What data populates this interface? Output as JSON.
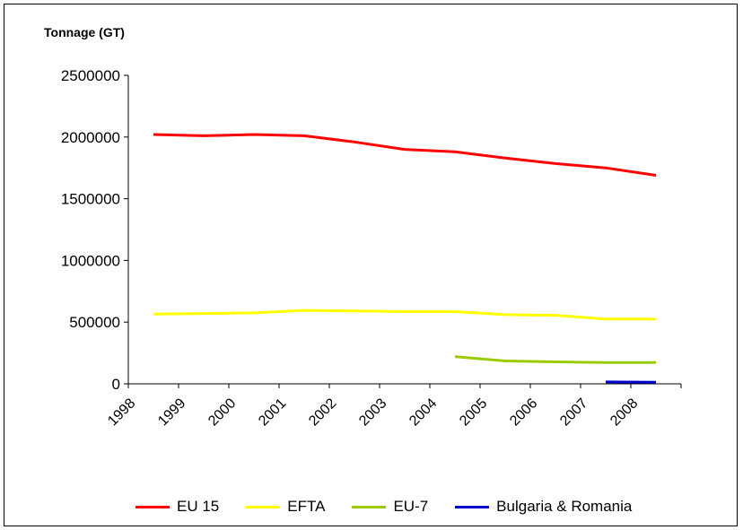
{
  "chart_data": {
    "type": "line",
    "ylabel": "Tonnage (GT)",
    "x_categories": [
      "1998",
      "1999",
      "2000",
      "2001",
      "2002",
      "2003",
      "2004",
      "2005",
      "2006",
      "2007",
      "2008"
    ],
    "ylim": [
      0,
      2500000
    ],
    "yticks": [
      "0",
      "500000",
      "1000000",
      "1500000",
      "2000000",
      "2500000"
    ],
    "grid": false,
    "legend_position": "bottom",
    "series": [
      {
        "name": "EU 15",
        "color": "#ff0000",
        "points": [
          {
            "x": 1998.5,
            "y": 2020000
          },
          {
            "x": 1999.5,
            "y": 2010000
          },
          {
            "x": 2000.5,
            "y": 2020000
          },
          {
            "x": 2001.5,
            "y": 2010000
          },
          {
            "x": 2002.5,
            "y": 1960000
          },
          {
            "x": 2003.5,
            "y": 1900000
          },
          {
            "x": 2004.5,
            "y": 1880000
          },
          {
            "x": 2005.5,
            "y": 1830000
          },
          {
            "x": 2006.5,
            "y": 1785000
          },
          {
            "x": 2007.5,
            "y": 1750000
          },
          {
            "x": 2008.5,
            "y": 1690000
          }
        ]
      },
      {
        "name": "EFTA",
        "color": "#ffff00",
        "points": [
          {
            "x": 1998.5,
            "y": 565000
          },
          {
            "x": 1999.5,
            "y": 570000
          },
          {
            "x": 2000.5,
            "y": 575000
          },
          {
            "x": 2001.5,
            "y": 595000
          },
          {
            "x": 2002.5,
            "y": 590000
          },
          {
            "x": 2003.5,
            "y": 585000
          },
          {
            "x": 2004.5,
            "y": 585000
          },
          {
            "x": 2005.5,
            "y": 560000
          },
          {
            "x": 2006.5,
            "y": 555000
          },
          {
            "x": 2007.5,
            "y": 525000
          },
          {
            "x": 2008.5,
            "y": 525000
          }
        ]
      },
      {
        "name": "EU-7",
        "color": "#99cc00",
        "points": [
          {
            "x": 2004.5,
            "y": 220000
          },
          {
            "x": 2005.5,
            "y": 185000
          },
          {
            "x": 2006.5,
            "y": 178000
          },
          {
            "x": 2007.5,
            "y": 172000
          },
          {
            "x": 2008.5,
            "y": 172000
          }
        ]
      },
      {
        "name": "Bulgaria & Romania",
        "color": "#0000cc",
        "points": [
          {
            "x": 2007.5,
            "y": 15000
          },
          {
            "x": 2008.5,
            "y": 12000
          }
        ]
      }
    ]
  }
}
